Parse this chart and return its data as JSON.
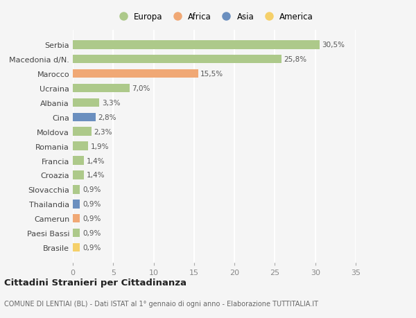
{
  "countries": [
    "Serbia",
    "Macedonia d/N.",
    "Marocco",
    "Ucraina",
    "Albania",
    "Cina",
    "Moldova",
    "Romania",
    "Francia",
    "Croazia",
    "Slovacchia",
    "Thailandia",
    "Camerun",
    "Paesi Bassi",
    "Brasile"
  ],
  "values": [
    30.5,
    25.8,
    15.5,
    7.0,
    3.3,
    2.8,
    2.3,
    1.9,
    1.4,
    1.4,
    0.9,
    0.9,
    0.9,
    0.9,
    0.9
  ],
  "labels": [
    "30,5%",
    "25,8%",
    "15,5%",
    "7,0%",
    "3,3%",
    "2,8%",
    "2,3%",
    "1,9%",
    "1,4%",
    "1,4%",
    "0,9%",
    "0,9%",
    "0,9%",
    "0,9%",
    "0,9%"
  ],
  "continents": [
    "Europa",
    "Europa",
    "Africa",
    "Europa",
    "Europa",
    "Asia",
    "Europa",
    "Europa",
    "Europa",
    "Europa",
    "Europa",
    "Asia",
    "Africa",
    "Europa",
    "America"
  ],
  "colors": {
    "Europa": "#adc98a",
    "Africa": "#f0a875",
    "Asia": "#6b8fbf",
    "America": "#f5d06a"
  },
  "legend_order": [
    "Europa",
    "Africa",
    "Asia",
    "America"
  ],
  "xlim": [
    0,
    35
  ],
  "xticks": [
    0,
    5,
    10,
    15,
    20,
    25,
    30,
    35
  ],
  "title": "Cittadini Stranieri per Cittadinanza",
  "subtitle": "COMUNE DI LENTIAI (BL) - Dati ISTAT al 1° gennaio di ogni anno - Elaborazione TUTTITALIA.IT",
  "bg_color": "#f5f5f5",
  "grid_color": "#ffffff",
  "bar_height": 0.6
}
